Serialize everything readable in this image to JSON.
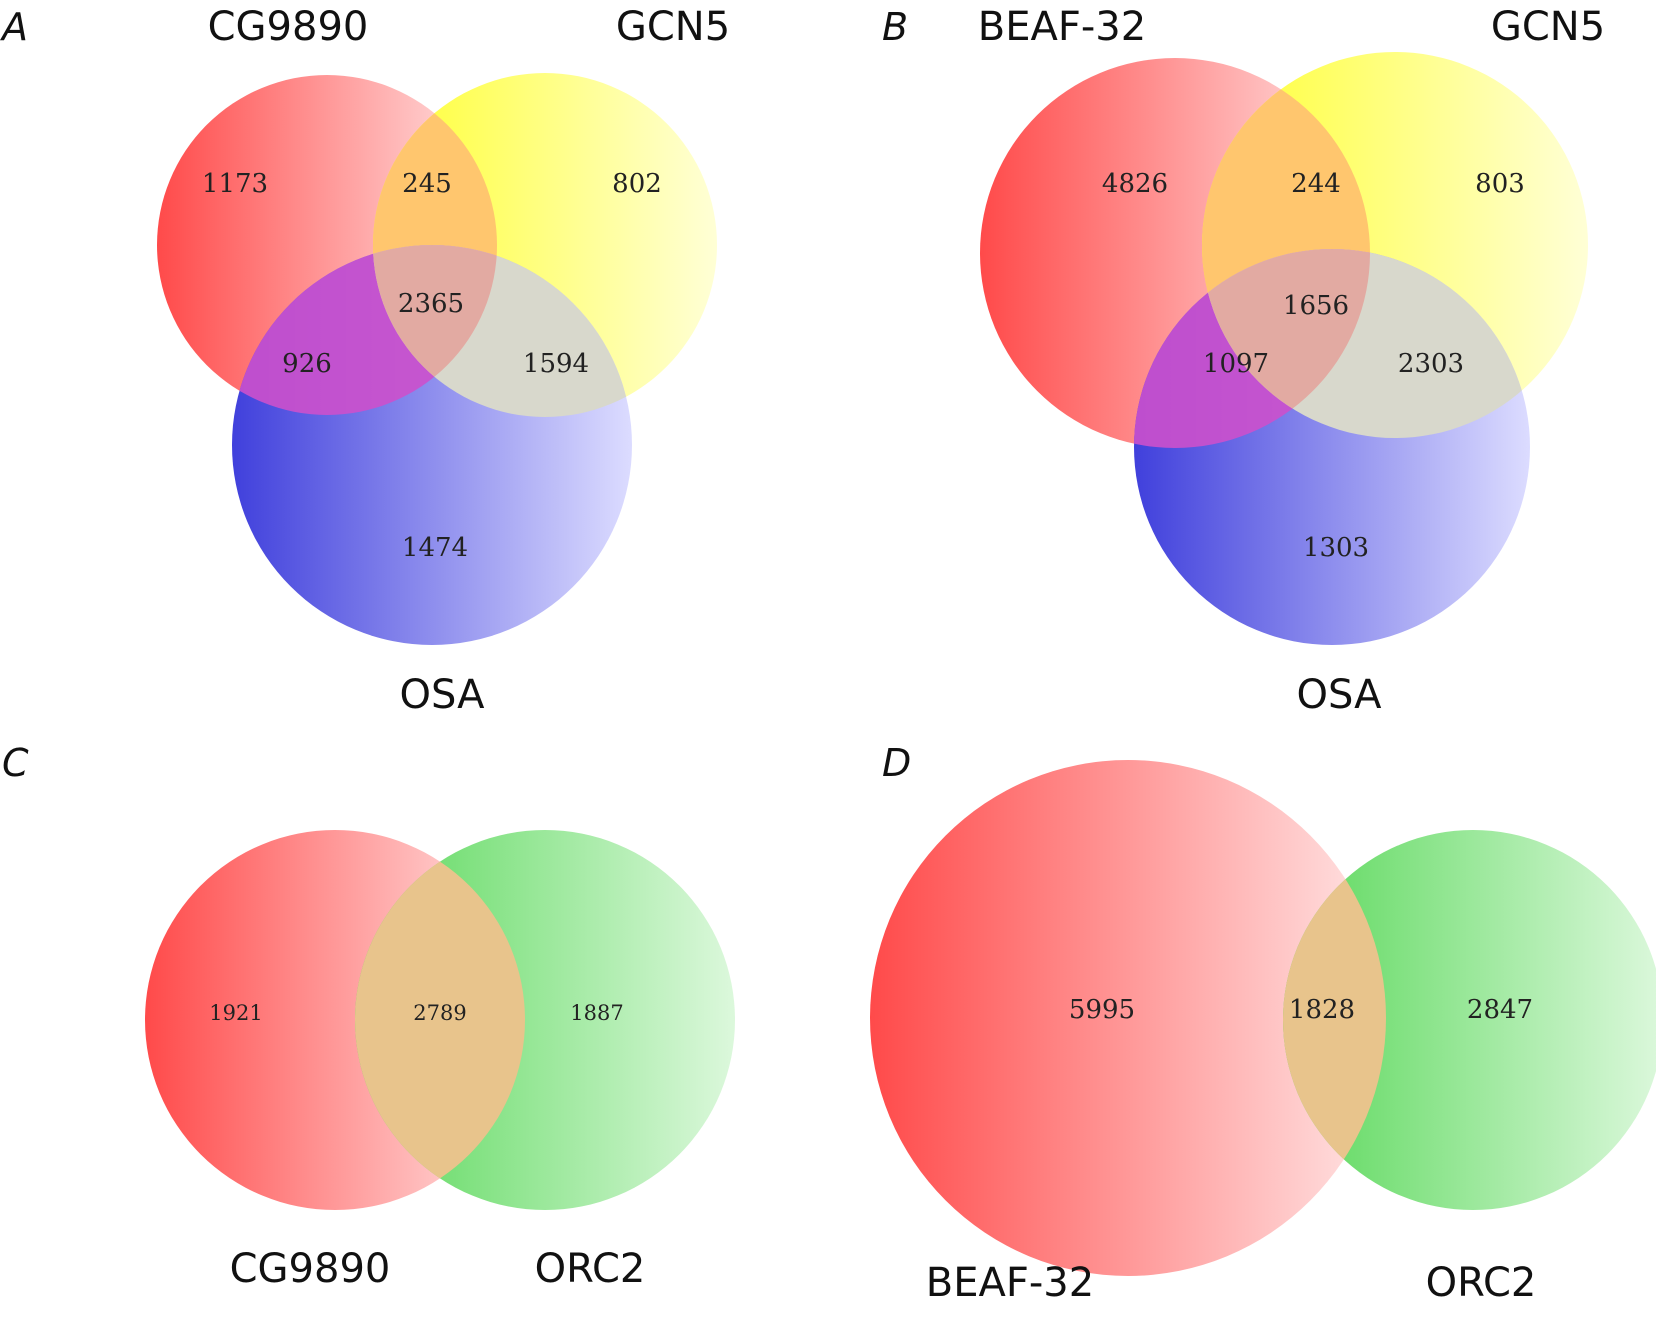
{
  "colors": {
    "red": "#ff4a4a",
    "yellow": "#ffff3c",
    "blue": "#4a4ae0",
    "green": "#5fd65f",
    "red_light": "#ffe4e4",
    "yellow_light": "#ffffd8",
    "blue_light": "#dcdcff",
    "green_light": "#e0fae0",
    "overlap_orange": "#ffc56e",
    "overlap_magenta": "#c84ac8",
    "overlap_grey": "#d6d6cc",
    "center": "#e5a89e",
    "pair_overlap": "#e8c48a"
  },
  "panels": [
    {
      "letter": "A",
      "sets": [
        "CG9890",
        "GCN5",
        "OSA"
      ],
      "counts": {
        "only_1": "1173",
        "only_2": "802",
        "only_3": "1474",
        "ab": "245",
        "ac": "926",
        "bc": "1594",
        "abc": "2365"
      }
    },
    {
      "letter": "B",
      "sets": [
        "BEAF-32",
        "GCN5",
        "OSA"
      ],
      "counts": {
        "only_1": "4826",
        "only_2": "803",
        "only_3": "1303",
        "ab": "244",
        "ac": "1097",
        "bc": "2303",
        "abc": "1656"
      }
    },
    {
      "letter": "C",
      "sets": [
        "CG9890",
        "ORC2"
      ],
      "counts": {
        "only_1": "1921",
        "both": "2789",
        "only_2": "1887"
      }
    },
    {
      "letter": "D",
      "sets": [
        "BEAF-32",
        "ORC2"
      ],
      "counts": {
        "only_1": "5995",
        "both": "1828",
        "only_2": "2847"
      }
    }
  ]
}
